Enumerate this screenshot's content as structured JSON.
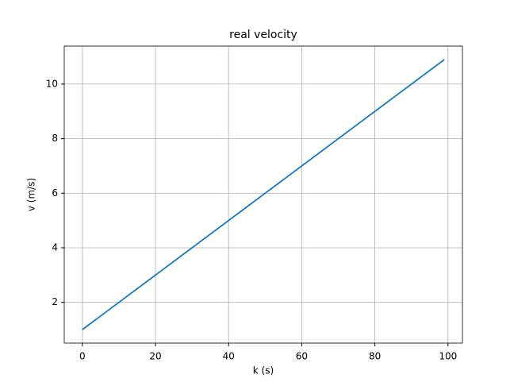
{
  "chart_data": {
    "type": "line",
    "title": "real velocity",
    "xlabel": "k (s)",
    "ylabel": "v (m/s)",
    "x": [
      0,
      99
    ],
    "series": [
      {
        "color": "#1f77b4",
        "values": [
          1,
          10.9
        ]
      }
    ],
    "xlim": [
      -4.95,
      103.95
    ],
    "ylim": [
      0.505,
      11.395
    ],
    "xticks": [
      0,
      20,
      40,
      60,
      80,
      100
    ],
    "yticks": [
      2,
      4,
      6,
      8,
      10
    ],
    "grid": true
  }
}
